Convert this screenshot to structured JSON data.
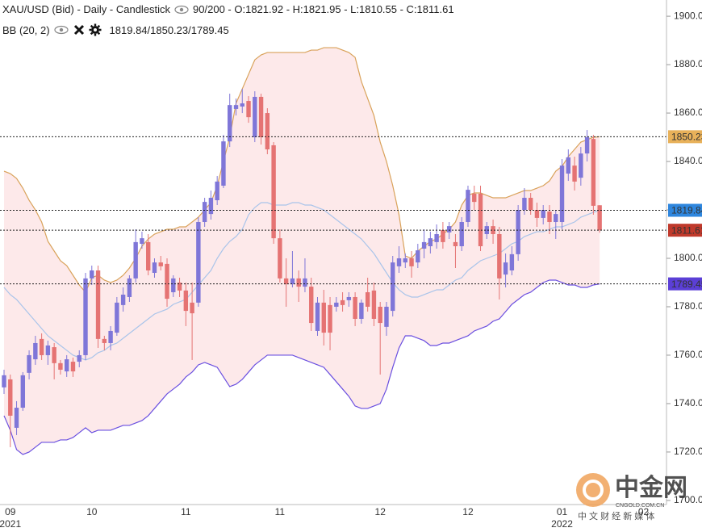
{
  "header": {
    "title": "XAU/USD (Bid) - Daily - Candlestick",
    "stats": "90/200 - O:1821.92 - H:1821.95 - L:1810.55 - C:1811.61"
  },
  "indicator": {
    "name": "BB (20, 2)",
    "values": "1819.84/1850.23/1789.45"
  },
  "watermark": {
    "brand": "中金网",
    "site": "CNGOLD.COM.CN",
    "slogan": "中 文 财 经 新 媒 体"
  },
  "chart_data": {
    "type": "candlestick",
    "up_color": "#7f76d8",
    "down_color": "#e57373",
    "band_fill": "#fde9ea",
    "grid": false,
    "ylim": [
      1698.3,
      1906.7
    ],
    "yticks": [
      {
        "value": 1700,
        "label": "1700.00"
      },
      {
        "value": 1720,
        "label": "1720.00"
      },
      {
        "value": 1740,
        "label": "1740.00"
      },
      {
        "value": 1760,
        "label": "1760.00"
      },
      {
        "value": 1780,
        "label": "1780.00"
      },
      {
        "value": 1800,
        "label": "1800.00"
      },
      {
        "value": 1820,
        "label": "1820.00"
      },
      {
        "value": 1840,
        "label": "1840.00"
      },
      {
        "value": 1860,
        "label": "1860.00"
      },
      {
        "value": 1880,
        "label": "1880.00"
      },
      {
        "value": 1900,
        "label": "1900.00"
      }
    ],
    "categories": [
      null,
      "09",
      null,
      null,
      null,
      null,
      null,
      null,
      null,
      null,
      null,
      null,
      null,
      null,
      "10",
      null,
      null,
      null,
      null,
      null,
      null,
      null,
      null,
      null,
      null,
      null,
      null,
      null,
      null,
      "11",
      null,
      null,
      null,
      null,
      null,
      null,
      null,
      null,
      null,
      null,
      null,
      null,
      null,
      null,
      "11",
      null,
      null,
      null,
      null,
      null,
      null,
      null,
      null,
      null,
      null,
      null,
      null,
      null,
      null,
      null,
      "12",
      null,
      null,
      null,
      null,
      null,
      null,
      null,
      null,
      null,
      null,
      null,
      null,
      null,
      "12",
      null,
      null,
      null,
      null,
      null,
      null,
      null,
      null,
      null,
      null,
      null,
      null,
      null,
      null,
      "01",
      null,
      null,
      null,
      null,
      null,
      null,
      null,
      null,
      null,
      null,
      null,
      null,
      "02",
      null,
      null,
      null
    ],
    "year_labels": [
      {
        "category": 1,
        "label": "2021"
      },
      {
        "category": 89,
        "label": "2022"
      }
    ],
    "open": [
      1746.7,
      1750,
      1730,
      1738.3,
      1752.7,
      1758.3,
      1766.7,
      1760,
      1763.3,
      1756.7,
      1753.3,
      1757.3,
      1757.3,
      1760,
      1791.7,
      1795,
      1766.7,
      1765,
      1769.3,
      1780.7,
      1784,
      1791.7,
      1806,
      1806.7,
      1794,
      1798.3,
      1797.7,
      1786,
      1790,
      1786.7,
      1781.7,
      1781.7,
      1815,
      1818.3,
      1824,
      1830,
      1848.3,
      1861.7,
      1862.7,
      1865,
      1850,
      1866.7,
      1860,
      1846.7,
      1808.3,
      1791.7,
      1789.3,
      1791.7,
      1788.3,
      1788.3,
      1770,
      1781.7,
      1780.7,
      1780,
      1782.7,
      1782.7,
      1784,
      1775,
      1786,
      1786.7,
      1780,
      1771.7,
      1778.3,
      1796.7,
      1798.3,
      1800,
      1798.3,
      1804,
      1805,
      1806.7,
      1811.7,
      1810.7,
      1806.7,
      1805,
      1815,
      1826.7,
      1826.7,
      1810,
      1813.3,
      1810,
      1793.3,
      1795,
      1801.7,
      1820,
      1825,
      1820,
      1816.7,
      1819.3,
      1815,
      1815,
      1835,
      1838.3,
      1833.3,
      1843.3,
      1849.3,
      1821.92,
      null,
      null,
      null,
      null,
      null,
      null,
      null,
      null,
      null,
      null
    ],
    "high": [
      1754,
      1752,
      1741,
      1753,
      1762,
      1768,
      1769,
      1766,
      1765,
      1758,
      1760,
      1759,
      1762,
      1794,
      1797,
      1797,
      1768,
      1772,
      1784,
      1788,
      1793,
      1812,
      1811,
      1810,
      1800,
      1801,
      1800,
      1793,
      1792,
      1790,
      1790,
      1817,
      1825,
      1828,
      1834,
      1851,
      1868,
      1866,
      1870,
      1867,
      1869,
      1868,
      1862,
      1848,
      1812,
      1800,
      1803,
      1795,
      1800,
      1792,
      1784,
      1787,
      1784,
      1784,
      1786,
      1786,
      1786,
      1783,
      1792,
      1790,
      1782,
      1782,
      1801,
      1805,
      1802,
      1803,
      1806,
      1812,
      1811,
      1814,
      1815,
      1815,
      1810,
      1817,
      1830,
      1830,
      1830,
      1815,
      1816,
      1813,
      1802,
      1805,
      1822,
      1829,
      1827,
      1823,
      1822,
      1822,
      1820,
      1841,
      1845,
      1842,
      1846,
      1853,
      1851,
      1821.95,
      null,
      null,
      null,
      null,
      null,
      null,
      null,
      null,
      null,
      null
    ],
    "low": [
      1744,
      1722,
      1727,
      1737,
      1750,
      1756,
      1758,
      1756,
      1750,
      1752,
      1751,
      1751,
      1755,
      1758,
      1789,
      1763,
      1762,
      1762,
      1768,
      1778,
      1782,
      1790,
      1804,
      1793,
      1792,
      1795,
      1780,
      1784,
      1784,
      1772,
      1758,
      1780,
      1813,
      1816,
      1822,
      1829,
      1846,
      1859,
      1860,
      1856,
      1848,
      1847,
      1843,
      1806,
      1790,
      1780,
      1788,
      1782,
      1786,
      1770,
      1768,
      1764,
      1762,
      1778,
      1778,
      1780,
      1772,
      1773,
      1778,
      1772,
      1752,
      1768,
      1776,
      1794,
      1796,
      1792,
      1796,
      1800,
      1802,
      1804,
      1804,
      1808,
      1796,
      1803,
      1813,
      1820,
      1803,
      1808,
      1806,
      1783,
      1788,
      1793,
      1799,
      1818,
      1818,
      1813,
      1814,
      1810,
      1808,
      1812,
      1832,
      1828,
      1830,
      1840,
      1818,
      1810.55,
      null,
      null,
      null,
      null,
      null,
      null,
      null,
      null,
      null,
      null
    ],
    "close": [
      1751.7,
      1735,
      1738.3,
      1751.7,
      1760,
      1765,
      1760,
      1764,
      1756.7,
      1754,
      1758.3,
      1753.3,
      1760,
      1791.7,
      1795,
      1766.7,
      1765,
      1770,
      1781.7,
      1785,
      1791.7,
      1806.7,
      1808.3,
      1795,
      1798.3,
      1796.7,
      1783.3,
      1791.7,
      1786.7,
      1778.3,
      1777.3,
      1815,
      1823.3,
      1825,
      1831.7,
      1848.3,
      1863.3,
      1863.3,
      1864,
      1858.3,
      1866.7,
      1850,
      1845,
      1808.3,
      1791.7,
      1789.3,
      1791.7,
      1788.3,
      1791.7,
      1773.3,
      1781.7,
      1769.3,
      1769.3,
      1781.7,
      1780.7,
      1784,
      1775,
      1781.7,
      1780,
      1775,
      1773.3,
      1780,
      1798.3,
      1800,
      1800,
      1796.7,
      1803.3,
      1806.7,
      1808.3,
      1810,
      1806.7,
      1813.3,
      1805,
      1815,
      1828.3,
      1823.3,
      1805,
      1813.3,
      1810,
      1791.7,
      1798.3,
      1801.7,
      1820,
      1825,
      1820,
      1816.7,
      1820,
      1815,
      1818.3,
      1838.3,
      1841.7,
      1831.7,
      1843.3,
      1850,
      1821.7,
      1811.61,
      null,
      null,
      null,
      null,
      null,
      null,
      null,
      null,
      null,
      null
    ],
    "bands": [
      {
        "color": "#d9a25a",
        "values": [
          1836,
          1835,
          1833,
          1829,
          1824,
          1820,
          1815,
          1807,
          1803,
          1799,
          1797,
          1793,
          1789,
          1786,
          1792,
          1793,
          1791,
          1790,
          1791,
          1793,
          1796,
          1800,
          1805,
          1808,
          1810,
          1811,
          1812,
          1812,
          1813,
          1813,
          1815,
          1817,
          1820,
          1823,
          1830,
          1840,
          1850,
          1864,
          1870,
          1876,
          1882,
          1884,
          1885,
          1885,
          1885,
          1885,
          1885,
          1885,
          1885,
          1886,
          1886,
          1887,
          1887,
          1887,
          1886,
          1885,
          1883,
          1873,
          1866,
          1859,
          1848,
          1840,
          1830,
          1818,
          1801,
          1800,
          1803,
          1805,
          1807,
          1808,
          1810,
          1812,
          1815,
          1822,
          1826,
          1827,
          1827,
          1826,
          1825,
          1825,
          1825,
          1826,
          1827,
          1828,
          1828,
          1829,
          1830,
          1832,
          1836,
          1838,
          1842,
          1845,
          1848,
          1849,
          1850,
          1850.23,
          null,
          null,
          null,
          null,
          null,
          null,
          null,
          null,
          null,
          null
        ]
      },
      {
        "color": "#a9c4ea",
        "values": [
          1788,
          1785,
          1783,
          1780,
          1777,
          1774,
          1771,
          1768,
          1766,
          1764,
          1762,
          1760,
          1759,
          1758,
          1759,
          1761,
          1762,
          1764,
          1765,
          1767,
          1769,
          1771,
          1773,
          1775,
          1777,
          1778,
          1779,
          1781,
          1782,
          1783,
          1786,
          1789,
          1792,
          1795,
          1800,
          1804,
          1807,
          1809,
          1812,
          1818,
          1821,
          1823,
          1823,
          1822,
          1822,
          1822,
          1823,
          1823,
          1822,
          1822,
          1821,
          1820,
          1818,
          1816,
          1814,
          1812,
          1810,
          1808,
          1805,
          1802,
          1798,
          1794,
          1790,
          1787,
          1785,
          1784,
          1784,
          1785,
          1786,
          1787,
          1787,
          1789,
          1791,
          1792,
          1795,
          1797,
          1799,
          1800,
          1801,
          1802,
          1804,
          1806,
          1807,
          1809,
          1810,
          1811,
          1811,
          1812,
          1813,
          1813,
          1814,
          1815,
          1817,
          1818,
          1819,
          1819.84,
          null,
          null,
          null,
          null,
          null,
          null,
          null,
          null,
          null,
          null
        ]
      },
      {
        "color": "#6a4fe0",
        "values": [
          1735,
          1729,
          1721,
          1719,
          1720,
          1722,
          1724,
          1724,
          1724,
          1725,
          1725,
          1726,
          1728,
          1730,
          1728,
          1729,
          1729,
          1729,
          1730,
          1731,
          1731,
          1732,
          1733,
          1735,
          1738,
          1741,
          1744,
          1746,
          1748,
          1751,
          1753,
          1756,
          1757,
          1756,
          1755,
          1751,
          1747,
          1748,
          1750,
          1753,
          1756,
          1758,
          1760,
          1760,
          1760,
          1760,
          1760,
          1759,
          1758,
          1757,
          1756,
          1755,
          1752,
          1749,
          1746,
          1743,
          1739,
          1738,
          1738,
          1739,
          1740,
          1746,
          1755,
          1763,
          1768,
          1768,
          1767,
          1766,
          1764,
          1764,
          1765,
          1765,
          1766,
          1767,
          1768,
          1770,
          1771,
          1772,
          1774,
          1775,
          1778,
          1781,
          1783,
          1785,
          1786,
          1788,
          1790,
          1791,
          1791,
          1790,
          1789,
          1789,
          1788,
          1788,
          1789,
          1789.45,
          null,
          null,
          null,
          null,
          null,
          null,
          null,
          null,
          null,
          null
        ]
      }
    ],
    "markers": [
      {
        "value": 1850.23,
        "color": "#e8b15a",
        "text_color": "#222"
      },
      {
        "value": 1819.84,
        "color": "#2e86de",
        "text_color": "#fff"
      },
      {
        "value": 1811.61,
        "color": "#c0392b",
        "text_color": "#fff"
      },
      {
        "value": 1789.45,
        "color": "#5b3fd6",
        "text_color": "#fff"
      }
    ]
  }
}
